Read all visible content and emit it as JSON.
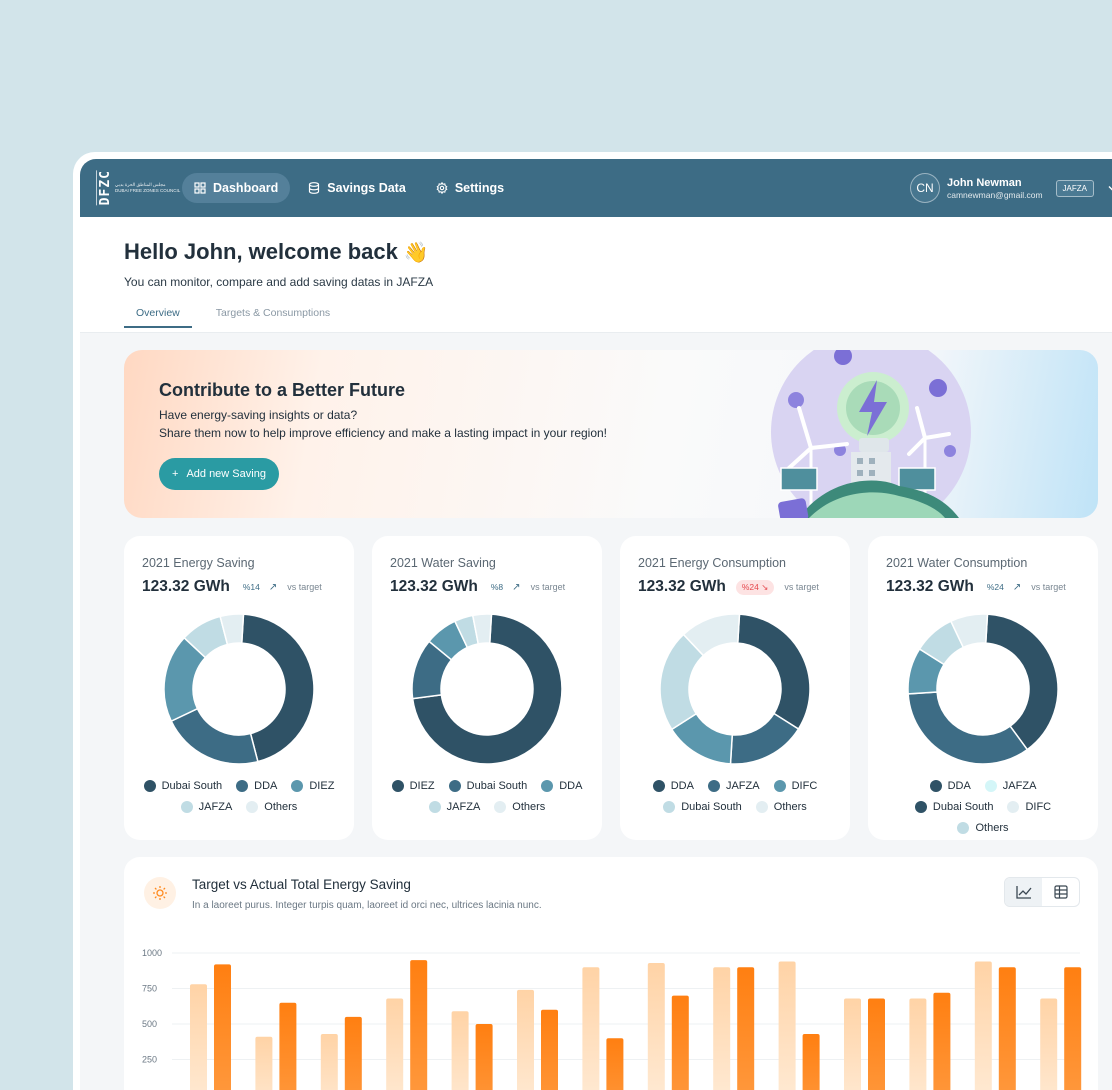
{
  "nav": {
    "logo_text": "DFZC",
    "logo_ar": "مجلس المناطق الحرة بدبي",
    "logo_en": "DUBAI FREE ZONES COUNCIL",
    "items": [
      {
        "label": "Dashboard",
        "icon": "grid-icon",
        "active": true
      },
      {
        "label": "Savings Data",
        "icon": "database-icon",
        "active": false
      },
      {
        "label": "Settings",
        "icon": "gear-icon",
        "active": false
      }
    ],
    "user": {
      "initials": "CN",
      "name": "John Newman",
      "email": "camnewman@gmail.com",
      "zone": "JAFZA"
    }
  },
  "header": {
    "greeting": "Hello John, welcome back",
    "wave": "👋",
    "subtitle": "You can monitor, compare and add saving datas in JAFZA",
    "tabs": [
      {
        "label": "Overview",
        "active": true
      },
      {
        "label": "Targets & Consumptions",
        "active": false
      }
    ]
  },
  "hero": {
    "title": "Contribute to a Better Future",
    "line1": "Have energy-saving insights or data?",
    "line2": "Share them now to help improve efficiency and make a lasting impact in your region!",
    "button": "Add new Saving"
  },
  "cards": [
    {
      "title": "2021 Energy Saving",
      "value": "123.32 GWh",
      "change": "%14",
      "trend": "up",
      "negative": false,
      "vs": "vs target",
      "slices": [
        {
          "label": "Dubai South",
          "value": 45,
          "color": "#2f5266"
        },
        {
          "label": "DDA",
          "value": 22,
          "color": "#3d6c85"
        },
        {
          "label": "DIEZ",
          "value": 19,
          "color": "#5b97ad"
        },
        {
          "label": "JAFZA",
          "value": 9,
          "color": "#c0dce4"
        },
        {
          "label": "Others",
          "value": 5,
          "color": "#e3eef2"
        }
      ],
      "legend": [
        "Dubai South",
        "DDA",
        "DIEZ",
        "JAFZA",
        "Others"
      ]
    },
    {
      "title": "2021 Water Saving",
      "value": "123.32 GWh",
      "change": "%8",
      "trend": "up",
      "negative": false,
      "vs": "vs target",
      "slices": [
        {
          "label": "DIEZ",
          "value": 72,
          "color": "#2f5266"
        },
        {
          "label": "Dubai South",
          "value": 13,
          "color": "#3d6c85"
        },
        {
          "label": "DDA",
          "value": 7,
          "color": "#5b97ad"
        },
        {
          "label": "JAFZA",
          "value": 4,
          "color": "#c0dce4"
        },
        {
          "label": "Others",
          "value": 4,
          "color": "#e3eef2"
        }
      ],
      "legend": [
        "DIEZ",
        "Dubai South",
        "DDA",
        "JAFZA",
        "Others"
      ]
    },
    {
      "title": "2021 Energy Consumption",
      "value": "123.32 GWh",
      "change": "%24",
      "trend": "down",
      "negative": true,
      "vs": "vs target",
      "slices": [
        {
          "label": "DDA",
          "value": 33,
          "color": "#2f5266"
        },
        {
          "label": "JAFZA",
          "value": 17,
          "color": "#3d6c85"
        },
        {
          "label": "DIFC",
          "value": 15,
          "color": "#5b97ad"
        },
        {
          "label": "Dubai South",
          "value": 22,
          "color": "#c0dce4"
        },
        {
          "label": "Others",
          "value": 13,
          "color": "#e3eef2"
        }
      ],
      "legend": [
        "DDA",
        "JAFZA",
        "DIFC",
        "Dubai South",
        "Others"
      ]
    },
    {
      "title": "2021 Water Consumption",
      "value": "123.32 GWh",
      "change": "%24",
      "trend": "up",
      "negative": false,
      "vs": "vs target",
      "slices": [
        {
          "label": "DDA",
          "value": 39,
          "color": "#2f5266"
        },
        {
          "label": "Dubai South",
          "value": 34,
          "color": "#3d6c85"
        },
        {
          "label": "DIFC",
          "value": 10,
          "color": "#5b97ad"
        },
        {
          "label": "Others",
          "value": 9,
          "color": "#c0dce4"
        },
        {
          "label": "JAFZA",
          "value": 8,
          "color": "#e3eef2"
        }
      ],
      "legend": [
        "DDA",
        "JAFZA",
        "Dubai South",
        "DIFC",
        "Others"
      ],
      "legend_colors": [
        "#2f5266",
        "#d4f6f8",
        "#2f5266",
        "#e3eef2",
        "#c0dce4"
      ]
    }
  ],
  "chart": {
    "title": "Target vs Actual Total Energy Saving",
    "subtitle": "In a laoreet purus. Integer turpis quam, laoreet id orci nec, ultrices lacinia nunc.",
    "toggle": [
      "line-chart-icon",
      "table-icon"
    ]
  },
  "chart_data": {
    "type": "bar",
    "yticks": [
      "1000",
      "750",
      "500",
      "250"
    ],
    "ylim": [
      0,
      1000
    ],
    "series": [
      {
        "values": [
          780,
          410,
          430,
          680,
          590,
          740,
          900,
          930,
          900,
          940,
          680,
          680,
          940,
          680
        ]
      },
      {
        "values": [
          920,
          650,
          550,
          950,
          500,
          600,
          400,
          700,
          900,
          430,
          680,
          720,
          900,
          900
        ]
      }
    ],
    "colors": {
      "target": "#ffd8b0",
      "actual": "#ff8a1f"
    }
  }
}
